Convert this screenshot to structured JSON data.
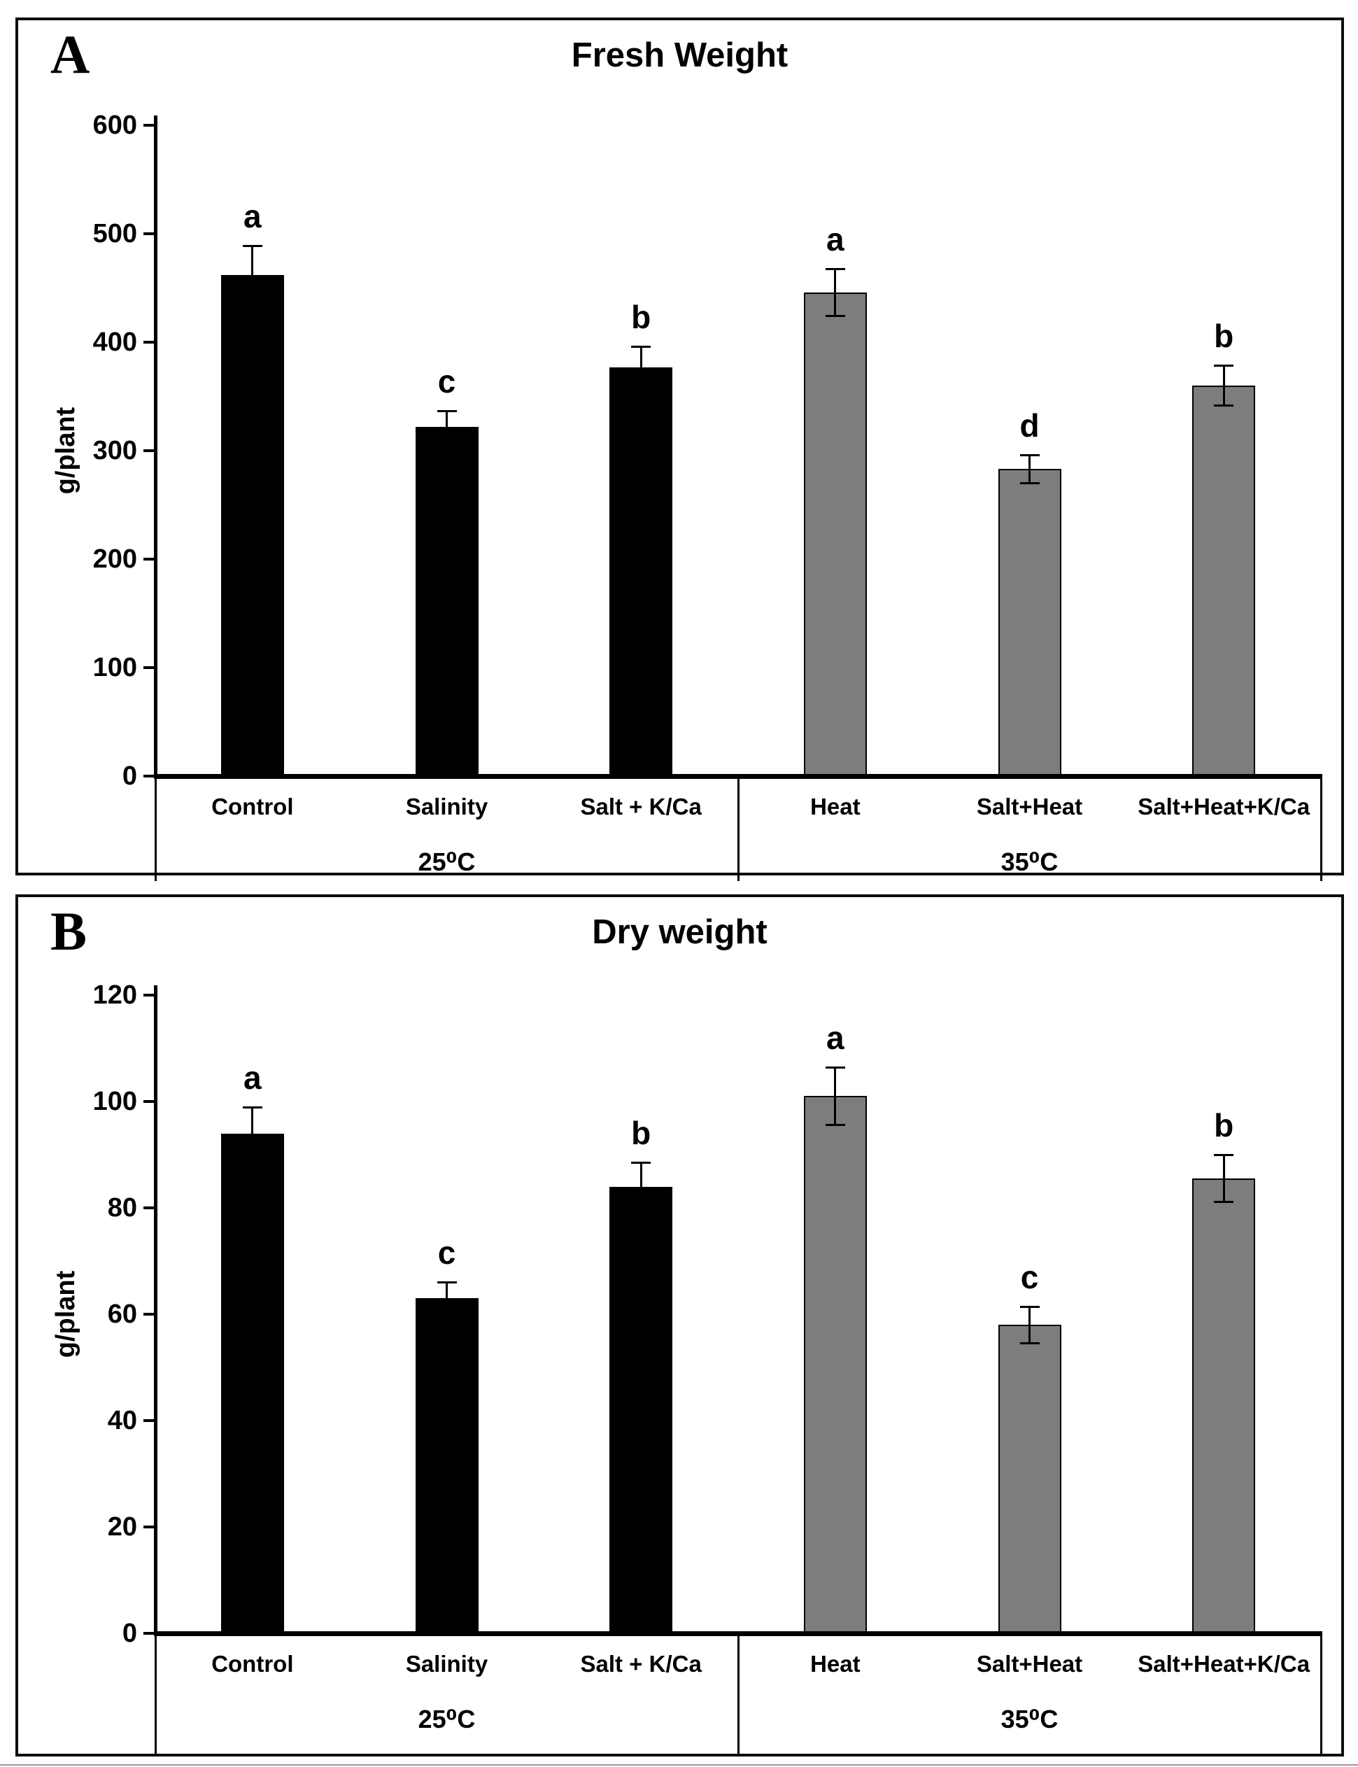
{
  "figure": {
    "panel_a_letter": "A",
    "panel_b_letter": "B",
    "bar_black": "#000000",
    "bar_gray": "#7d7d7d",
    "axis_color": "#000000"
  },
  "chart_data": [
    {
      "panel": "A",
      "type": "bar",
      "title": "Fresh Weight",
      "ylabel": "g/plant",
      "xlabel": "",
      "ylim": [
        0,
        600
      ],
      "yticks": [
        0,
        100,
        200,
        300,
        400,
        500,
        600
      ],
      "grid": false,
      "legend": "none",
      "categories": [
        "Control",
        "Salinity",
        "Salt + K/Ca",
        "Heat",
        "Salt+Heat",
        "Salt+Heat+K/Ca"
      ],
      "values": [
        462,
        322,
        377,
        446,
        283,
        360
      ],
      "errors": [
        27,
        15,
        19,
        22,
        13,
        19
      ],
      "sig_letters": [
        "a",
        "c",
        "b",
        "a",
        "d",
        "b"
      ],
      "bar_colors": [
        "#000000",
        "#000000",
        "#000000",
        "#7d7d7d",
        "#7d7d7d",
        "#7d7d7d"
      ],
      "groups": [
        {
          "label": "25⁰C",
          "first": 0,
          "last": 2
        },
        {
          "label": "35⁰C",
          "first": 3,
          "last": 5
        }
      ]
    },
    {
      "panel": "B",
      "type": "bar",
      "title": "Dry weight",
      "ylabel": "g/plant",
      "xlabel": "",
      "ylim": [
        0,
        120
      ],
      "yticks": [
        0,
        20,
        40,
        60,
        80,
        100,
        120
      ],
      "grid": false,
      "legend": "none",
      "categories": [
        "Control",
        "Salinity",
        "Salt + K/Ca",
        "Heat",
        "Salt+Heat",
        "Salt+Heat+K/Ca"
      ],
      "values": [
        94,
        63,
        84,
        101,
        58,
        85.5
      ],
      "errors": [
        5,
        3,
        4.5,
        5.5,
        3.5,
        4.5
      ],
      "sig_letters": [
        "a",
        "c",
        "b",
        "a",
        "c",
        "b"
      ],
      "bar_colors": [
        "#000000",
        "#000000",
        "#000000",
        "#7d7d7d",
        "#7d7d7d",
        "#7d7d7d"
      ],
      "groups": [
        {
          "label": "25⁰C",
          "first": 0,
          "last": 2
        },
        {
          "label": "35⁰C",
          "first": 3,
          "last": 5
        }
      ]
    }
  ]
}
